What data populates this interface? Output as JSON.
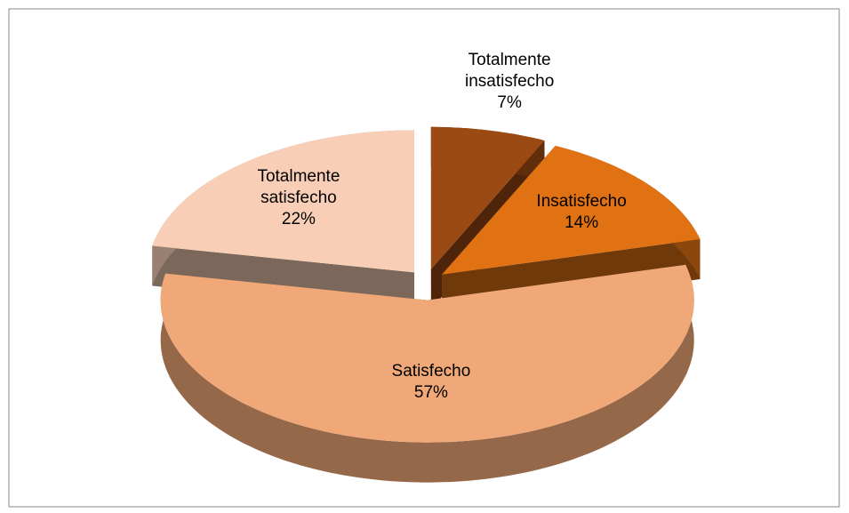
{
  "chart_data": {
    "type": "pie",
    "categories": [
      "Totalmente insatisfecho",
      "Insatisfecho",
      "Satisfecho",
      "Totalmente satisfecho"
    ],
    "values": [
      7,
      14,
      57,
      22
    ],
    "value_labels": [
      "7%",
      "14%",
      "57%",
      "22%"
    ],
    "colors": [
      "#9c4a14",
      "#e07214",
      "#f1a878",
      "#f8cfb6"
    ]
  }
}
